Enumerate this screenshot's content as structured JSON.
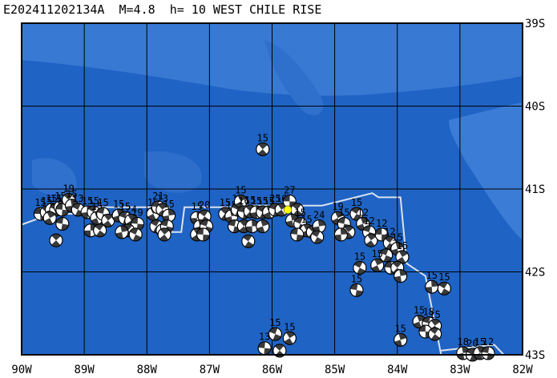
{
  "title": "E202411202134A  M=4.8  h= 10 WEST CHILE RISE",
  "colors": {
    "ocean_deep": "#1f63c4",
    "ocean_shallow": "#3779d3",
    "ridge_line": "#d9e2ee",
    "grid": "#000000",
    "epicenter": "#ffff00"
  },
  "map": {
    "lon_range": [
      -90,
      -82
    ],
    "lat_range": [
      -43,
      -39
    ],
    "lon_labels": [
      {
        "lon": -90,
        "text": "90W"
      },
      {
        "lon": -89,
        "text": "89W"
      },
      {
        "lon": -88,
        "text": "88W"
      },
      {
        "lon": -87,
        "text": "87W"
      },
      {
        "lon": -86,
        "text": "86W"
      },
      {
        "lon": -85,
        "text": "85W"
      },
      {
        "lon": -84,
        "text": "84W"
      },
      {
        "lon": -83,
        "text": "83W"
      },
      {
        "lon": -82,
        "text": "82W"
      }
    ],
    "lat_labels": [
      {
        "lat": -39,
        "text": "39S"
      },
      {
        "lat": -40,
        "text": "40S"
      },
      {
        "lat": -41,
        "text": "41S"
      },
      {
        "lat": -42,
        "text": "42S"
      },
      {
        "lat": -43,
        "text": "43S"
      }
    ],
    "epicenter": {
      "lon": -85.75,
      "lat": -41.25
    },
    "ridge": [
      [
        -90,
        -41.43
      ],
      [
        -89.6,
        -41.32
      ],
      [
        -89.4,
        -41.3
      ],
      [
        -89.0,
        -41.3
      ],
      [
        -88.9,
        -41.22
      ],
      [
        -87.65,
        -41.22
      ],
      [
        -87.6,
        -41.52
      ],
      [
        -87.45,
        -41.52
      ],
      [
        -87.4,
        -41.22
      ],
      [
        -86.55,
        -41.22
      ],
      [
        -86.5,
        -41.2
      ],
      [
        -85.2,
        -41.2
      ],
      [
        -84.4,
        -41.05
      ],
      [
        -84.3,
        -41.1
      ],
      [
        -83.95,
        -41.1
      ],
      [
        -83.85,
        -41.9
      ],
      [
        -83.55,
        -42.05
      ],
      [
        -83.3,
        -43.0
      ]
    ],
    "ridge_tail": [
      [
        -83.3,
        -42.95
      ],
      [
        -82.45,
        -42.88
      ],
      [
        -82.3,
        -43.0
      ]
    ],
    "mechanisms": [
      {
        "lon": -89.7,
        "lat": -41.3,
        "label": "15"
      },
      {
        "lon": -89.6,
        "lat": -41.28,
        "label": "15"
      },
      {
        "lon": -89.52,
        "lat": -41.25,
        "label": "15"
      },
      {
        "lon": -89.45,
        "lat": -41.25,
        "label": "15"
      },
      {
        "lon": -89.38,
        "lat": -41.22,
        "label": "15"
      },
      {
        "lon": -89.35,
        "lat": -41.25,
        "label": "15"
      },
      {
        "lon": -89.25,
        "lat": -41.13,
        "label": "19"
      },
      {
        "lon": -89.2,
        "lat": -41.2,
        "label": "15"
      },
      {
        "lon": -89.1,
        "lat": -41.25,
        "label": "13"
      },
      {
        "lon": -89.55,
        "lat": -41.35,
        "label": ""
      },
      {
        "lon": -89.35,
        "lat": -41.42,
        "label": ""
      },
      {
        "lon": -89.45,
        "lat": -41.62,
        "label": ""
      },
      {
        "lon": -88.95,
        "lat": -41.28,
        "label": "15"
      },
      {
        "lon": -88.85,
        "lat": -41.28,
        "label": "15"
      },
      {
        "lon": -88.8,
        "lat": -41.35,
        "label": "15"
      },
      {
        "lon": -88.7,
        "lat": -41.3,
        "label": "15"
      },
      {
        "lon": -88.62,
        "lat": -41.38,
        "label": ""
      },
      {
        "lon": -88.9,
        "lat": -41.5,
        "label": ""
      },
      {
        "lon": -88.75,
        "lat": -41.5,
        "label": ""
      },
      {
        "lon": -88.45,
        "lat": -41.32,
        "label": "15"
      },
      {
        "lon": -88.35,
        "lat": -41.35,
        "label": "15"
      },
      {
        "lon": -88.25,
        "lat": -41.38,
        "label": "24"
      },
      {
        "lon": -88.15,
        "lat": -41.42,
        "label": "19"
      },
      {
        "lon": -88.3,
        "lat": -41.5,
        "label": ""
      },
      {
        "lon": -88.4,
        "lat": -41.52,
        "label": ""
      },
      {
        "lon": -88.18,
        "lat": -41.55,
        "label": ""
      },
      {
        "lon": -87.9,
        "lat": -41.3,
        "label": "15"
      },
      {
        "lon": -87.82,
        "lat": -41.22,
        "label": "21"
      },
      {
        "lon": -87.75,
        "lat": -41.25,
        "label": "13"
      },
      {
        "lon": -87.65,
        "lat": -41.32,
        "label": "15"
      },
      {
        "lon": -87.85,
        "lat": -41.45,
        "label": ""
      },
      {
        "lon": -87.75,
        "lat": -41.5,
        "label": ""
      },
      {
        "lon": -87.68,
        "lat": -41.45,
        "label": ""
      },
      {
        "lon": -87.72,
        "lat": -41.55,
        "label": ""
      },
      {
        "lon": -87.2,
        "lat": -41.35,
        "label": "15"
      },
      {
        "lon": -87.08,
        "lat": -41.33,
        "label": "20"
      },
      {
        "lon": -87.15,
        "lat": -41.45,
        "label": ""
      },
      {
        "lon": -87.05,
        "lat": -41.45,
        "label": ""
      },
      {
        "lon": -87.2,
        "lat": -41.55,
        "label": ""
      },
      {
        "lon": -87.1,
        "lat": -41.55,
        "label": ""
      },
      {
        "lon": -86.75,
        "lat": -41.3,
        "label": "15"
      },
      {
        "lon": -86.65,
        "lat": -41.33,
        "label": "15"
      },
      {
        "lon": -86.55,
        "lat": -41.25,
        "label": "15"
      },
      {
        "lon": -86.5,
        "lat": -41.15,
        "label": "15"
      },
      {
        "lon": -86.45,
        "lat": -41.28,
        "label": "16"
      },
      {
        "lon": -86.35,
        "lat": -41.27,
        "label": "15"
      },
      {
        "lon": -86.25,
        "lat": -41.28,
        "label": "15"
      },
      {
        "lon": -86.15,
        "lat": -41.28,
        "label": "15"
      },
      {
        "lon": -86.05,
        "lat": -41.28,
        "label": "15"
      },
      {
        "lon": -86.6,
        "lat": -41.45,
        "label": ""
      },
      {
        "lon": -86.45,
        "lat": -41.45,
        "label": ""
      },
      {
        "lon": -86.32,
        "lat": -41.45,
        "label": ""
      },
      {
        "lon": -86.38,
        "lat": -41.63,
        "label": ""
      },
      {
        "lon": -86.15,
        "lat": -41.45,
        "label": ""
      },
      {
        "lon": -85.95,
        "lat": -41.25,
        "label": "25"
      },
      {
        "lon": -85.85,
        "lat": -41.25,
        "label": "16"
      },
      {
        "lon": -85.72,
        "lat": -41.15,
        "label": "27"
      },
      {
        "lon": -85.6,
        "lat": -41.25,
        "label": ""
      },
      {
        "lon": -85.68,
        "lat": -41.38,
        "label": ""
      },
      {
        "lon": -85.55,
        "lat": -41.42,
        "label": "15"
      },
      {
        "lon": -85.45,
        "lat": -41.5,
        "label": "15"
      },
      {
        "lon": -85.6,
        "lat": -41.55,
        "label": ""
      },
      {
        "lon": -85.35,
        "lat": -41.52,
        "label": ""
      },
      {
        "lon": -85.25,
        "lat": -41.45,
        "label": "24"
      },
      {
        "lon": -85.28,
        "lat": -41.58,
        "label": ""
      },
      {
        "lon": -84.95,
        "lat": -41.35,
        "label": "19"
      },
      {
        "lon": -84.85,
        "lat": -41.42,
        "label": "15"
      },
      {
        "lon": -84.78,
        "lat": -41.52,
        "label": ""
      },
      {
        "lon": -84.9,
        "lat": -41.55,
        "label": ""
      },
      {
        "lon": -84.65,
        "lat": -41.3,
        "label": "15"
      },
      {
        "lon": -84.55,
        "lat": -41.42,
        "label": "12"
      },
      {
        "lon": -84.45,
        "lat": -41.52,
        "label": "12"
      },
      {
        "lon": -84.42,
        "lat": -41.62,
        "label": ""
      },
      {
        "lon": -84.25,
        "lat": -41.55,
        "label": "12"
      },
      {
        "lon": -84.12,
        "lat": -41.65,
        "label": "12"
      },
      {
        "lon": -84.0,
        "lat": -41.72,
        "label": "15"
      },
      {
        "lon": -84.18,
        "lat": -41.8,
        "label": ""
      },
      {
        "lon": -83.92,
        "lat": -41.82,
        "label": "15"
      },
      {
        "lon": -84.1,
        "lat": -41.95,
        "label": ""
      },
      {
        "lon": -84.0,
        "lat": -41.95,
        "label": ""
      },
      {
        "lon": -83.95,
        "lat": -42.05,
        "label": ""
      },
      {
        "lon": -84.6,
        "lat": -41.95,
        "label": "15"
      },
      {
        "lon": -84.32,
        "lat": -41.92,
        "label": "15"
      },
      {
        "lon": -84.65,
        "lat": -42.22,
        "label": "15"
      },
      {
        "lon": -86.15,
        "lat": -40.52,
        "label": "15"
      },
      {
        "lon": -83.45,
        "lat": -42.18,
        "label": "15"
      },
      {
        "lon": -83.25,
        "lat": -42.2,
        "label": "15"
      },
      {
        "lon": -83.65,
        "lat": -42.6,
        "label": "15"
      },
      {
        "lon": -83.5,
        "lat": -42.62,
        "label": "18"
      },
      {
        "lon": -83.4,
        "lat": -42.65,
        "label": "15"
      },
      {
        "lon": -83.55,
        "lat": -42.72,
        "label": ""
      },
      {
        "lon": -83.4,
        "lat": -42.75,
        "label": ""
      },
      {
        "lon": -83.95,
        "lat": -42.82,
        "label": "15"
      },
      {
        "lon": -85.95,
        "lat": -42.75,
        "label": "15"
      },
      {
        "lon": -85.72,
        "lat": -42.8,
        "label": "15"
      },
      {
        "lon": -86.12,
        "lat": -42.92,
        "label": "13"
      },
      {
        "lon": -85.88,
        "lat": -42.95,
        "label": ""
      },
      {
        "lon": -82.95,
        "lat": -42.98,
        "label": "18"
      },
      {
        "lon": -82.8,
        "lat": -43.0,
        "label": "20"
      },
      {
        "lon": -82.68,
        "lat": -42.98,
        "label": "15"
      },
      {
        "lon": -82.55,
        "lat": -42.98,
        "label": "12"
      }
    ]
  }
}
